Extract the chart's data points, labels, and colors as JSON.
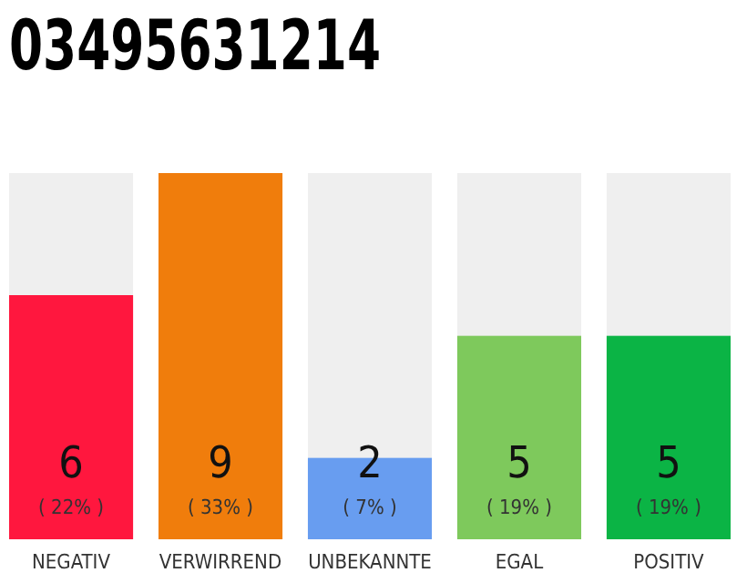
{
  "chart_data": {
    "type": "bar",
    "title": "03495631214",
    "categories": [
      "NEGATIV",
      "VERWIRREND",
      "UNBEKANNTE",
      "EGAL",
      "POSITIV"
    ],
    "values": [
      6,
      9,
      2,
      5,
      5
    ],
    "colors": [
      "#ff173e",
      "#f07d0c",
      "#689df0",
      "#7ec95c",
      "#0bb445"
    ],
    "ylim": [
      0,
      9
    ],
    "data_labels": true,
    "tick_labels": "x",
    "annotations": [
      "( 22% )",
      "( 33% )",
      "( 7% )",
      "( 19% )",
      "( 19% )"
    ]
  }
}
